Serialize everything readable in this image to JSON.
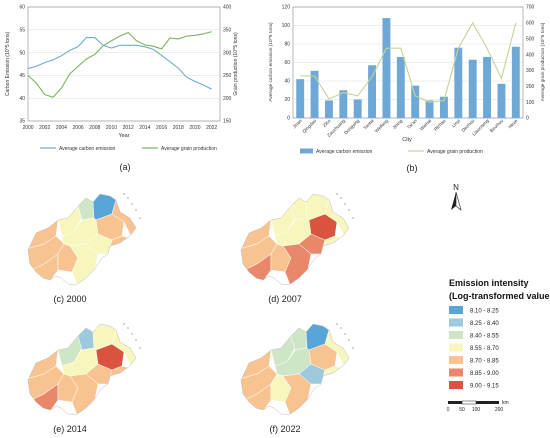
{
  "chart_data": [
    {
      "type": "line",
      "panel_label": "(a)",
      "xlabel": "Year",
      "ylabel_left": "Carbon Emission (10^5 tons)",
      "ylabel_right": "Grain production (10^5 tons)",
      "x_ticks": [
        "2000",
        "2002",
        "2004",
        "2006",
        "2008",
        "2010",
        "2012",
        "2014",
        "2016",
        "2018",
        "2020",
        "2022"
      ],
      "xlim": [
        2000,
        2023
      ],
      "ylim_left": [
        35,
        60
      ],
      "ylim_right": [
        150,
        400
      ],
      "y_ticks_left": [
        "35",
        "40",
        "45",
        "50",
        "55",
        "60"
      ],
      "y_ticks_right": [
        "150",
        "200",
        "250",
        "300",
        "350",
        "400"
      ],
      "series": [
        {
          "name": "Average carbon emission",
          "axis": "left",
          "color": "#74a9cf",
          "x": [
            2000,
            2001,
            2002,
            2003,
            2004,
            2005,
            2006,
            2007,
            2008,
            2009,
            2010,
            2011,
            2012,
            2013,
            2014,
            2015,
            2016,
            2017,
            2018,
            2019,
            2020,
            2021,
            2022
          ],
          "values": [
            46.5,
            47.0,
            47.8,
            48.4,
            49.3,
            50.5,
            51.3,
            53.3,
            53.3,
            51.6,
            51.0,
            51.6,
            51.6,
            51.6,
            51.3,
            50.7,
            49.4,
            48.0,
            46.6,
            44.6,
            43.7,
            42.9,
            42.0
          ]
        },
        {
          "name": "Average grain production",
          "axis": "right",
          "color": "#7bb560",
          "x": [
            2000,
            2001,
            2002,
            2003,
            2004,
            2005,
            2006,
            2007,
            2008,
            2009,
            2010,
            2011,
            2012,
            2013,
            2014,
            2015,
            2016,
            2017,
            2018,
            2019,
            2020,
            2021,
            2022
          ],
          "values": [
            250,
            233,
            208,
            202,
            222,
            253,
            270,
            286,
            296,
            315,
            326,
            336,
            344,
            326,
            317,
            314,
            308,
            332,
            330,
            336,
            338,
            341,
            346
          ]
        }
      ]
    },
    {
      "type": "bar",
      "panel_label": "(b)",
      "xlabel": "City",
      "ylabel_left": "Average carbon emission (10^5 tons)",
      "ylabel_right": "Average grain production (10^5 tons)",
      "categories": [
        "Jinan",
        "Qingdao",
        "Zibo",
        "Zaozhuang",
        "Dongying",
        "Yantai",
        "Weifang",
        "Jining",
        "Tai'an",
        "Weihai",
        "Rizhao",
        "Linyi",
        "Dezhou",
        "Liaocheng",
        "Binzhou",
        "Heze"
      ],
      "ylim_left": [
        0,
        120
      ],
      "ylim_right": [
        0,
        700
      ],
      "y_ticks_left": [
        "0",
        "20",
        "40",
        "60",
        "80",
        "100",
        "120"
      ],
      "y_ticks_right": [
        "0",
        "100",
        "200",
        "300",
        "400",
        "500",
        "600",
        "700"
      ],
      "series": [
        {
          "name": "Average carbon emission",
          "type": "bar",
          "axis": "left",
          "color": "#6fa8d6",
          "values": [
            42,
            51,
            19,
            30,
            20,
            57,
            108,
            66,
            35,
            19,
            23,
            76,
            63,
            66,
            37,
            77
          ]
        },
        {
          "name": "Average grain production",
          "type": "line",
          "axis": "right",
          "color": "#c3d49a",
          "values": [
            265,
            265,
            120,
            160,
            140,
            260,
            440,
            440,
            140,
            100,
            110,
            440,
            600,
            440,
            250,
            600
          ]
        }
      ]
    }
  ],
  "maps": [
    {
      "label": "(c) 2000"
    },
    {
      "label": "(d) 2007"
    },
    {
      "label": "(e) 2014"
    },
    {
      "label": "(f) 2022"
    }
  ],
  "legend": {
    "title_line1": "Emission intensity",
    "title_line2": "(Log-transformed values)",
    "classes": [
      {
        "range": "8.10 - 8.25",
        "color": "#5aa5d8"
      },
      {
        "range": "8.25 - 8.40",
        "color": "#9dc9dc"
      },
      {
        "range": "8.40 - 8.55",
        "color": "#cfe6c6"
      },
      {
        "range": "8.55 - 8.70",
        "color": "#f6f6bd"
      },
      {
        "range": "8.70 - 8.85",
        "color": "#f7c391"
      },
      {
        "range": "8.85 - 9.00",
        "color": "#e9876b"
      },
      {
        "range": "9.00 - 9.15",
        "color": "#d9533f"
      }
    ]
  },
  "north_label": "N",
  "scalebar": {
    "ticks": [
      "0",
      "50",
      "100",
      "200"
    ],
    "unit": "km"
  }
}
